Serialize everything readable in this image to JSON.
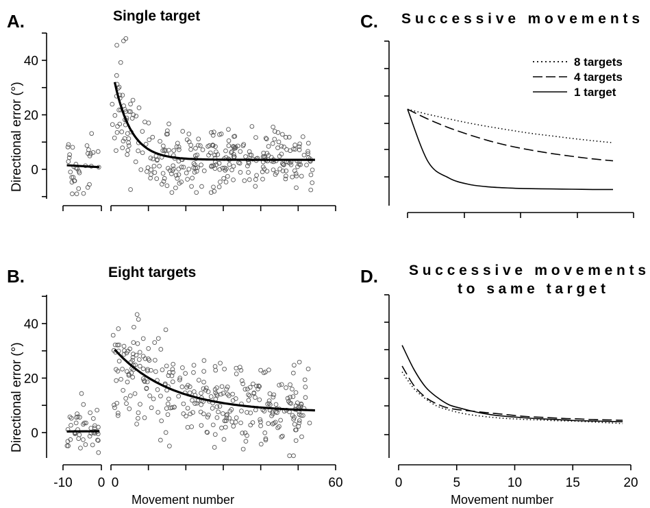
{
  "panels": {
    "A": {
      "label": "A.",
      "title": "Single target"
    },
    "B": {
      "label": "B.",
      "title": "Eight targets"
    },
    "C": {
      "label": "C.",
      "title": "Successive movements"
    },
    "D": {
      "label": "D.",
      "title_line1": "Successive movements",
      "title_line2": "to same target"
    }
  },
  "ylabel": "Directional error (°)",
  "xlabel_left": "Movement number",
  "xlabel_right": "Movement number",
  "legend": [
    "8 targets",
    "4 targets",
    "1 target"
  ],
  "chart_data": [
    {
      "panel": "A",
      "type": "scatter",
      "title": "Single target",
      "ylabel": "Directional error (°)",
      "ylim": [
        -10,
        50
      ],
      "yticks": [
        0,
        20,
        40
      ],
      "xlim_baseline": [
        -10,
        0
      ],
      "xlim_main": [
        0,
        60
      ],
      "seed": 11,
      "baseline": {
        "n": 35,
        "mean": 1.5,
        "sd": 6,
        "fit": [
          [
            -9,
            1.5
          ],
          [
            -0.5,
            0.8
          ]
        ]
      },
      "main": {
        "n": 320,
        "fit_start": 32,
        "fit_asymptote": 3.5,
        "fit_tau": 4.5,
        "scatter_sd_start": 11,
        "scatter_sd_end": 5.5
      }
    },
    {
      "panel": "B",
      "type": "scatter",
      "title": "Eight targets",
      "ylabel": "Directional error (°)",
      "xlabel": "Movement number",
      "ylim": [
        -10,
        50
      ],
      "yticks": [
        0,
        20,
        40
      ],
      "xlim_baseline": [
        -10,
        0
      ],
      "xlim_main": [
        0,
        60
      ],
      "xticks_baseline": [
        "-10",
        "0"
      ],
      "xticks_main": [
        "0",
        "60"
      ],
      "seed": 29,
      "baseline": {
        "n": 45,
        "mean": 1,
        "sd": 4.5,
        "fit": [
          [
            -9,
            0.4
          ],
          [
            -0.5,
            0.5
          ]
        ]
      },
      "main": {
        "n": 330,
        "fit_start": 30.5,
        "fit_asymptote": 7.5,
        "fit_tau": 15,
        "scatter_sd_start": 10,
        "scatter_sd_end": 7.5
      }
    },
    {
      "panel": "C",
      "type": "line",
      "title": "Successive movements",
      "x": [
        0,
        1,
        2,
        3,
        4,
        5,
        6,
        7,
        8,
        9,
        10
      ],
      "series": [
        {
          "name": "8 targets",
          "style": "dotted",
          "values": [
            31,
            29.2,
            27.6,
            26.1,
            24.8,
            23.6,
            22.5,
            21.6,
            20.7,
            19.9,
            19.2
          ]
        },
        {
          "name": "4 targets",
          "style": "dashed",
          "values": [
            31,
            27.5,
            24.5,
            22,
            19.8,
            18,
            16.6,
            15.4,
            14.4,
            13.5,
            12.8
          ]
        },
        {
          "name": "1 target",
          "style": "solid",
          "values": [
            31,
            12.5,
            6.8,
            4.5,
            3.6,
            3.2,
            3.0,
            2.9,
            2.8,
            2.7,
            2.7
          ]
        }
      ],
      "ylim": [
        -3,
        55
      ]
    },
    {
      "panel": "D",
      "type": "line",
      "title": "Successive movements to same target",
      "xlabel": "Movement number",
      "x": [
        0,
        1,
        2,
        3,
        4,
        5,
        6,
        7,
        8,
        9,
        10,
        11,
        12,
        13,
        14,
        15,
        16,
        17,
        18,
        19
      ],
      "xlim": [
        0,
        20
      ],
      "xticks": [
        "0",
        "5",
        "10",
        "15",
        "20"
      ],
      "series": [
        {
          "name": "8 targets",
          "style": "dotted",
          "values": [
            24,
            18.5,
            15,
            12.5,
            11.2,
            10.2,
            9.5,
            9.0,
            8.6,
            8.3,
            8.1,
            7.9,
            7.8,
            7.6,
            7.5,
            7.4,
            7.2,
            7.0,
            6.8,
            6.6
          ]
        },
        {
          "name": "4 targets",
          "style": "dashed",
          "values": [
            26,
            19.5,
            15.5,
            13.2,
            11.8,
            11.2,
            10.8,
            10.4,
            10.0,
            9.6,
            9.2,
            8.9,
            8.7,
            8.5,
            8.3,
            8.2,
            8.0,
            7.9,
            7.8,
            7.7
          ]
        },
        {
          "name": "1 target",
          "style": "solid",
          "values": [
            33,
            25,
            19,
            15.5,
            13,
            11.8,
            10.8,
            10.0,
            9.4,
            9.0,
            8.7,
            8.4,
            8.2,
            8.0,
            7.8,
            7.6,
            7.5,
            7.4,
            7.3,
            7.2
          ]
        }
      ],
      "ylim": [
        -5,
        50
      ]
    }
  ]
}
